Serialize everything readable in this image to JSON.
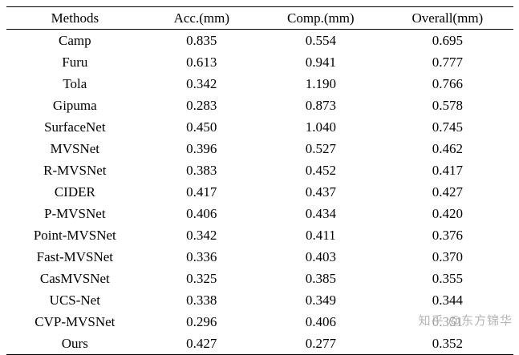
{
  "table": {
    "headers": [
      "Methods",
      "Acc.(mm)",
      "Comp.(mm)",
      "Overall(mm)"
    ],
    "rows": [
      {
        "cells": [
          {
            "t": "Camp"
          },
          {
            "t": "0.835"
          },
          {
            "t": "0.554"
          },
          {
            "t": "0.695"
          }
        ]
      },
      {
        "cells": [
          {
            "t": "Furu"
          },
          {
            "t": "0.613"
          },
          {
            "t": "0.941"
          },
          {
            "t": "0.777"
          }
        ]
      },
      {
        "cells": [
          {
            "t": "Tola"
          },
          {
            "t": "0.342"
          },
          {
            "t": "1.190"
          },
          {
            "t": "0.766"
          }
        ]
      },
      {
        "cells": [
          {
            "t": "Gipuma"
          },
          {
            "t": "0.283",
            "b": true
          },
          {
            "t": "0.873"
          },
          {
            "t": "0.578"
          }
        ]
      },
      {
        "cells": [
          {
            "t": "SurfaceNet"
          },
          {
            "t": "0.450"
          },
          {
            "t": "1.040"
          },
          {
            "t": "0.745"
          }
        ]
      },
      {
        "cells": [
          {
            "t": "MVSNet"
          },
          {
            "t": "0.396"
          },
          {
            "t": "0.527"
          },
          {
            "t": "0.462"
          }
        ]
      },
      {
        "cells": [
          {
            "t": "R-MVSNet"
          },
          {
            "t": "0.383"
          },
          {
            "t": "0.452"
          },
          {
            "t": "0.417"
          }
        ]
      },
      {
        "cells": [
          {
            "t": "CIDER"
          },
          {
            "t": "0.417"
          },
          {
            "t": "0.437"
          },
          {
            "t": "0.427"
          }
        ]
      },
      {
        "cells": [
          {
            "t": "P-MVSNet"
          },
          {
            "t": "0.406"
          },
          {
            "t": "0.434"
          },
          {
            "t": "0.420"
          }
        ]
      },
      {
        "cells": [
          {
            "t": "Point-MVSNet"
          },
          {
            "t": "0.342"
          },
          {
            "t": "0.411"
          },
          {
            "t": "0.376"
          }
        ]
      },
      {
        "cells": [
          {
            "t": "Fast-MVSNet"
          },
          {
            "t": "0.336"
          },
          {
            "t": "0.403"
          },
          {
            "t": "0.370"
          }
        ]
      },
      {
        "cells": [
          {
            "t": "CasMVSNet"
          },
          {
            "t": "0.325"
          },
          {
            "t": "0.385"
          },
          {
            "t": "0.355"
          }
        ]
      },
      {
        "cells": [
          {
            "t": "UCS-Net"
          },
          {
            "t": "0.338"
          },
          {
            "t": "0.349"
          },
          {
            "t": "0.344",
            "b": true
          }
        ]
      },
      {
        "cells": [
          {
            "t": "CVP-MVSNet"
          },
          {
            "t": "0.296"
          },
          {
            "t": "0.406"
          },
          {
            "t": "0.351"
          }
        ]
      },
      {
        "cells": [
          {
            "t": "Ours"
          },
          {
            "t": "0.427"
          },
          {
            "t": "0.277",
            "b": true
          },
          {
            "t": "0.352"
          }
        ]
      }
    ]
  },
  "watermark": "知乎 @东方锦华"
}
